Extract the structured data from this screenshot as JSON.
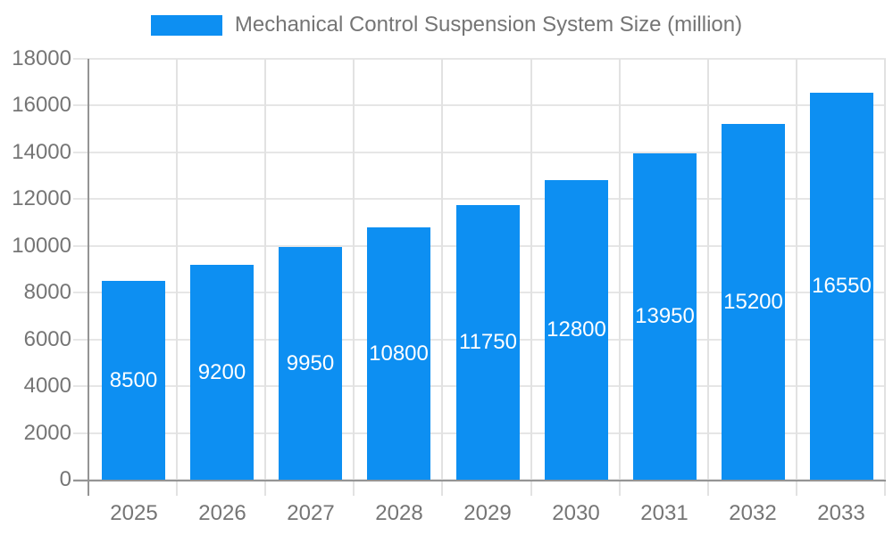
{
  "legend": {
    "label": "Mechanical Control Suspension System Size (million)"
  },
  "colors": {
    "bar": "#0d8ff2",
    "axis_line": "#949494",
    "gridline": "#e6e6e6",
    "tick_line": "#e2e2e2",
    "label_text": "#757575",
    "bar_value_text": "#ffffff",
    "background": "#ffffff"
  },
  "chart_data": {
    "type": "bar",
    "title": "Mechanical Control Suspension System Size (million)",
    "categories": [
      "2025",
      "2026",
      "2027",
      "2028",
      "2029",
      "2030",
      "2031",
      "2032",
      "2033"
    ],
    "values": [
      8500,
      9200,
      9950,
      10800,
      11750,
      12800,
      13950,
      15200,
      16550
    ],
    "series": [
      {
        "name": "Mechanical Control Suspension System Size (million)",
        "values": [
          8500,
          9200,
          9950,
          10800,
          11750,
          12800,
          13950,
          15200,
          16550
        ]
      }
    ],
    "xlabel": "",
    "ylabel": "",
    "ylim": [
      0,
      18000
    ],
    "yticks": [
      0,
      2000,
      4000,
      6000,
      8000,
      10000,
      12000,
      14000,
      16000,
      18000
    ],
    "grid": true,
    "legend_position": "top",
    "bar_value_labels": true
  }
}
